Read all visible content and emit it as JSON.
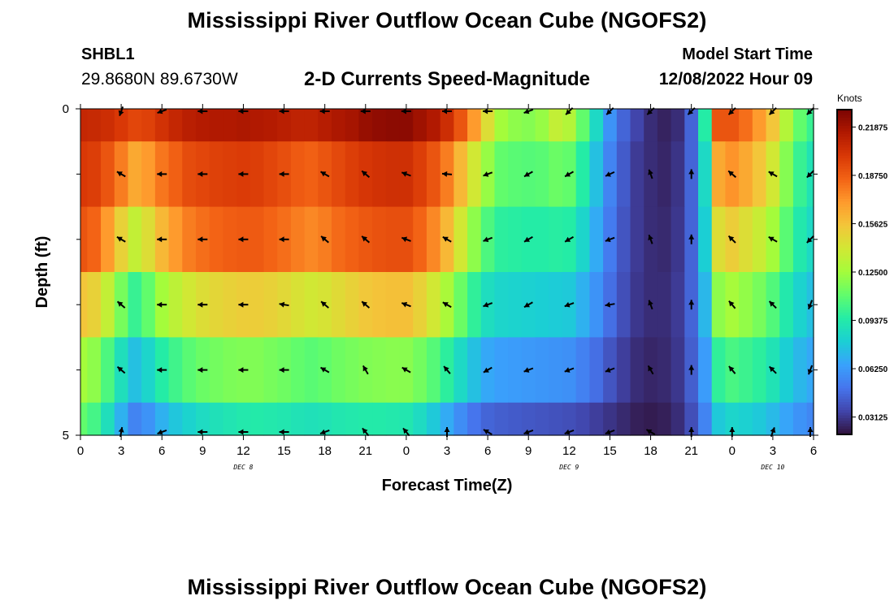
{
  "page": {
    "title_top": "Mississippi River Outflow Ocean Cube (NGOFS2)",
    "title_bottom": "Mississippi River Outflow Ocean Cube (NGOFS2)"
  },
  "header": {
    "station_id": "SHBL1",
    "station_coords": "29.8680N  89.6730W",
    "plot_title": "2-D Currents Speed-Magnitude",
    "model_start_label": "Model Start Time",
    "model_start_value": "12/08/2022 Hour 09"
  },
  "chart_data": {
    "type": "heatmap",
    "xlabel": "Forecast Time(Z)",
    "ylabel": "Depth (ft)",
    "x_tick_labels": [
      "0",
      "3",
      "6",
      "9",
      "12",
      "15",
      "18",
      "21",
      "0",
      "3",
      "6",
      "9",
      "12",
      "15",
      "18",
      "21",
      "0",
      "3",
      "6"
    ],
    "x_range_hours": [
      0,
      54
    ],
    "date_labels": [
      {
        "label": "DEC 8",
        "hour": 12
      },
      {
        "label": "DEC 9",
        "hour": 36
      },
      {
        "label": "DEC 10",
        "hour": 51
      }
    ],
    "y_range_ft": [
      0,
      5
    ],
    "y_tick_labels": [
      {
        "depth": 0,
        "label": "0"
      },
      {
        "depth": 5,
        "label": "5"
      }
    ],
    "y_minor_ticks_ft": [
      1,
      2,
      3,
      4
    ],
    "colorbar": {
      "unit": "Knots",
      "min": 0.02,
      "max": 0.23,
      "tick_values": [
        0.03125,
        0.0625,
        0.09375,
        0.125,
        0.15625,
        0.1875,
        0.21875
      ],
      "tick_labels": [
        "0.03125",
        "0.06250",
        "0.09375",
        "0.12500",
        "0.15625",
        "0.18750",
        "0.21875"
      ],
      "colormap": [
        "#30123b",
        "#4145ab",
        "#4675ed",
        "#39a2fc",
        "#1bcfd4",
        "#24eca6",
        "#61fc6c",
        "#a4fc3b",
        "#d1e834",
        "#f3c63a",
        "#fe9b2d",
        "#f36315",
        "#d93806",
        "#b11901",
        "#7a0402"
      ]
    },
    "speed_grid": {
      "times_hours": [
        0,
        1,
        2,
        3,
        4,
        5,
        6,
        7,
        8,
        9,
        10,
        11,
        12,
        13,
        14,
        15,
        16,
        17,
        18,
        19,
        20,
        21,
        22,
        23,
        24,
        25,
        26,
        27,
        28,
        29,
        30,
        31,
        32,
        33,
        34,
        35,
        36,
        37,
        38,
        39,
        40,
        41,
        42,
        43,
        44,
        45,
        46,
        47,
        48,
        49,
        50,
        51,
        52,
        53,
        54
      ],
      "depths_ft": [
        0,
        1,
        2,
        3,
        4,
        5
      ],
      "speed_knots": [
        [
          0.208,
          0.207,
          0.205,
          0.2,
          0.195,
          0.197,
          0.203,
          0.208,
          0.212,
          0.214,
          0.215,
          0.215,
          0.216,
          0.215,
          0.214,
          0.212,
          0.21,
          0.21,
          0.213,
          0.216,
          0.218,
          0.222,
          0.224,
          0.225,
          0.225,
          0.22,
          0.215,
          0.205,
          0.19,
          0.17,
          0.145,
          0.125,
          0.12,
          0.118,
          0.122,
          0.135,
          0.13,
          0.11,
          0.085,
          0.06,
          0.045,
          0.035,
          0.028,
          0.025,
          0.028,
          0.045,
          0.095,
          0.19,
          0.19,
          0.182,
          0.17,
          0.155,
          0.13,
          0.11,
          0.1
        ],
        [
          0.2,
          0.198,
          0.19,
          0.178,
          0.165,
          0.17,
          0.18,
          0.186,
          0.193,
          0.195,
          0.197,
          0.198,
          0.199,
          0.198,
          0.195,
          0.192,
          0.188,
          0.186,
          0.19,
          0.194,
          0.198,
          0.201,
          0.203,
          0.204,
          0.204,
          0.198,
          0.19,
          0.178,
          0.16,
          0.14,
          0.122,
          0.11,
          0.108,
          0.107,
          0.108,
          0.112,
          0.11,
          0.095,
          0.075,
          0.055,
          0.042,
          0.032,
          0.028,
          0.026,
          0.03,
          0.045,
          0.085,
          0.165,
          0.172,
          0.165,
          0.155,
          0.14,
          0.118,
          0.1,
          0.09
        ],
        [
          0.19,
          0.185,
          0.17,
          0.15,
          0.135,
          0.145,
          0.16,
          0.17,
          0.178,
          0.182,
          0.185,
          0.187,
          0.188,
          0.188,
          0.185,
          0.182,
          0.178,
          0.175,
          0.178,
          0.183,
          0.186,
          0.189,
          0.191,
          0.192,
          0.192,
          0.185,
          0.175,
          0.16,
          0.14,
          0.12,
          0.105,
          0.097,
          0.096,
          0.095,
          0.095,
          0.096,
          0.095,
          0.083,
          0.068,
          0.052,
          0.04,
          0.032,
          0.028,
          0.027,
          0.031,
          0.045,
          0.08,
          0.145,
          0.152,
          0.145,
          0.137,
          0.125,
          0.108,
          0.093,
          0.085
        ],
        [
          0.155,
          0.15,
          0.135,
          0.115,
          0.1,
          0.11,
          0.125,
          0.133,
          0.14,
          0.145,
          0.148,
          0.15,
          0.152,
          0.152,
          0.15,
          0.147,
          0.143,
          0.14,
          0.142,
          0.146,
          0.15,
          0.154,
          0.156,
          0.157,
          0.157,
          0.15,
          0.14,
          0.127,
          0.112,
          0.098,
          0.087,
          0.083,
          0.082,
          0.081,
          0.08,
          0.079,
          0.078,
          0.07,
          0.06,
          0.048,
          0.038,
          0.031,
          0.028,
          0.028,
          0.032,
          0.045,
          0.072,
          0.12,
          0.126,
          0.121,
          0.115,
          0.106,
          0.093,
          0.082,
          0.075
        ],
        [
          0.125,
          0.12,
          0.105,
          0.088,
          0.075,
          0.083,
          0.095,
          0.102,
          0.108,
          0.112,
          0.114,
          0.116,
          0.117,
          0.117,
          0.115,
          0.113,
          0.11,
          0.108,
          0.11,
          0.113,
          0.115,
          0.117,
          0.118,
          0.119,
          0.119,
          0.114,
          0.107,
          0.097,
          0.085,
          0.075,
          0.067,
          0.064,
          0.063,
          0.062,
          0.061,
          0.06,
          0.059,
          0.054,
          0.048,
          0.04,
          0.033,
          0.028,
          0.026,
          0.027,
          0.031,
          0.043,
          0.063,
          0.098,
          0.104,
          0.101,
          0.097,
          0.09,
          0.08,
          0.072,
          0.067
        ],
        [
          0.11,
          0.103,
          0.088,
          0.07,
          0.055,
          0.06,
          0.07,
          0.077,
          0.082,
          0.086,
          0.089,
          0.091,
          0.093,
          0.094,
          0.093,
          0.092,
          0.09,
          0.089,
          0.09,
          0.092,
          0.093,
          0.094,
          0.094,
          0.093,
          0.092,
          0.086,
          0.078,
          0.068,
          0.058,
          0.05,
          0.045,
          0.043,
          0.042,
          0.041,
          0.04,
          0.039,
          0.038,
          0.036,
          0.033,
          0.03,
          0.027,
          0.024,
          0.023,
          0.024,
          0.028,
          0.038,
          0.055,
          0.078,
          0.083,
          0.081,
          0.078,
          0.073,
          0.066,
          0.06,
          0.056
        ]
      ]
    },
    "vectors": {
      "times_hours": [
        3,
        6,
        9,
        12,
        15,
        18,
        21,
        24,
        27,
        30,
        33,
        36,
        39,
        42,
        45,
        48,
        51,
        54
      ],
      "depths_ft": [
        0,
        1,
        2,
        3,
        4,
        5
      ],
      "direction_deg": [
        [
          200,
          250,
          270,
          270,
          270,
          270,
          270,
          270,
          270,
          270,
          250,
          225,
          225,
          225,
          225,
          225,
          225,
          225
        ],
        [
          300,
          270,
          270,
          270,
          270,
          300,
          310,
          290,
          275,
          250,
          240,
          240,
          245,
          340,
          0,
          310,
          300,
          225
        ],
        [
          300,
          270,
          270,
          270,
          270,
          310,
          310,
          290,
          300,
          250,
          240,
          240,
          250,
          340,
          0,
          315,
          300,
          225
        ],
        [
          310,
          270,
          270,
          270,
          280,
          310,
          310,
          290,
          300,
          250,
          240,
          250,
          260,
          340,
          0,
          320,
          315,
          200
        ],
        [
          310,
          270,
          270,
          270,
          270,
          300,
          330,
          300,
          320,
          240,
          250,
          250,
          250,
          330,
          0,
          320,
          315,
          200
        ],
        [
          10,
          250,
          270,
          270,
          270,
          250,
          320,
          320,
          0,
          300,
          250,
          250,
          250,
          300,
          0,
          0,
          20,
          0
        ]
      ]
    }
  }
}
